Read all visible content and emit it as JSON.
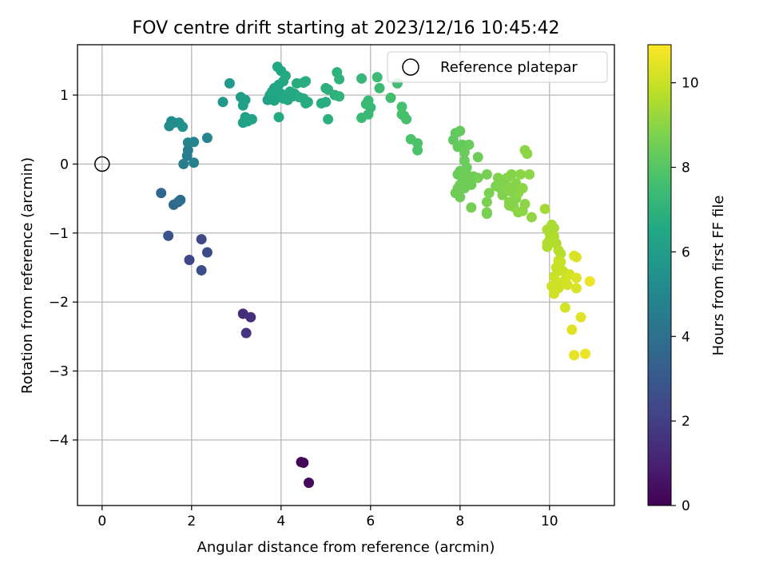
{
  "chart_data": {
    "type": "scatter",
    "title": "FOV centre drift starting at 2023/12/16 10:45:42",
    "xlabel": "Angular distance from reference (arcmin)",
    "ylabel": "Rotation from reference (arcmin)",
    "xlim": [
      -0.55,
      11.45
    ],
    "ylim": [
      -4.95,
      1.73
    ],
    "xticks": [
      0,
      2,
      4,
      6,
      8,
      10
    ],
    "yticks": [
      -4,
      -3,
      -2,
      -1,
      0,
      1
    ],
    "grid": true,
    "legend": {
      "position": "upper right",
      "entries": [
        {
          "label": "Reference platepar",
          "marker": "open-circle",
          "x": 0,
          "y": 0
        }
      ]
    },
    "colorbar": {
      "label": "Hours from first FF file",
      "range": [
        0,
        10.9
      ],
      "ticks": [
        0,
        2,
        4,
        6,
        8,
        10
      ],
      "colormap": "viridis"
    },
    "points": [
      [
        4.45,
        -4.32,
        0.1
      ],
      [
        4.5,
        -4.33,
        0.2
      ],
      [
        4.62,
        -4.62,
        0.3
      ],
      [
        3.15,
        -2.17,
        1.4
      ],
      [
        3.32,
        -2.22,
        1.5
      ],
      [
        3.22,
        -2.45,
        1.6
      ],
      [
        1.95,
        -1.39,
        2.3
      ],
      [
        2.22,
        -1.09,
        2.4
      ],
      [
        2.35,
        -1.28,
        2.5
      ],
      [
        2.22,
        -1.54,
        2.6
      ],
      [
        1.48,
        -1.04,
        2.8
      ],
      [
        1.32,
        -0.42,
        3.6
      ],
      [
        1.6,
        -0.59,
        3.7
      ],
      [
        1.7,
        -0.55,
        3.8
      ],
      [
        1.75,
        -0.52,
        3.9
      ],
      [
        1.82,
        0.0,
        4.5
      ],
      [
        1.92,
        0.2,
        4.6
      ],
      [
        2.05,
        0.02,
        4.7
      ],
      [
        1.92,
        0.31,
        4.8
      ],
      [
        2.05,
        0.32,
        4.9
      ],
      [
        2.35,
        0.38,
        5.0
      ],
      [
        1.9,
        0.12,
        4.6
      ],
      [
        1.5,
        0.55,
        5.2
      ],
      [
        1.55,
        0.62,
        5.3
      ],
      [
        1.72,
        0.6,
        5.4
      ],
      [
        1.8,
        0.54,
        5.5
      ],
      [
        1.6,
        0.6,
        5.3
      ],
      [
        2.7,
        0.9,
        5.8
      ],
      [
        2.85,
        1.17,
        5.9
      ],
      [
        3.1,
        0.97,
        6.0
      ],
      [
        3.2,
        0.93,
        6.0
      ],
      [
        3.15,
        0.85,
        6.1
      ],
      [
        3.2,
        0.68,
        6.1
      ],
      [
        3.15,
        0.6,
        6.2
      ],
      [
        3.35,
        0.65,
        6.2
      ],
      [
        3.25,
        0.62,
        6.3
      ],
      [
        3.7,
        0.93,
        6.3
      ],
      [
        3.75,
        1.0,
        6.3
      ],
      [
        3.8,
        1.05,
        6.4
      ],
      [
        3.85,
        1.1,
        6.4
      ],
      [
        3.95,
        1.15,
        6.4
      ],
      [
        3.92,
        1.41,
        6.5
      ],
      [
        4.0,
        1.35,
        6.5
      ],
      [
        4.05,
        1.2,
        6.5
      ],
      [
        4.1,
        1.28,
        6.6
      ],
      [
        4.0,
        1.02,
        6.5
      ],
      [
        4.12,
        1.0,
        6.6
      ],
      [
        4.2,
        1.05,
        6.6
      ],
      [
        4.25,
        0.98,
        6.6
      ],
      [
        4.3,
        1.02,
        6.6
      ],
      [
        3.9,
        0.97,
        6.5
      ],
      [
        4.05,
        0.95,
        6.6
      ],
      [
        3.85,
        0.92,
        6.4
      ],
      [
        4.15,
        0.93,
        6.6
      ],
      [
        3.95,
        0.68,
        6.6
      ],
      [
        4.35,
        1.17,
        6.7
      ],
      [
        4.4,
        0.97,
        6.7
      ],
      [
        4.5,
        0.95,
        6.7
      ],
      [
        4.55,
        0.88,
        6.7
      ],
      [
        4.5,
        1.18,
        6.8
      ],
      [
        4.55,
        1.2,
        6.8
      ],
      [
        4.6,
        0.9,
        6.7
      ],
      [
        4.9,
        0.88,
        6.8
      ],
      [
        5.0,
        0.9,
        6.8
      ],
      [
        5.0,
        1.1,
        6.9
      ],
      [
        5.05,
        1.08,
        6.9
      ],
      [
        5.05,
        0.65,
        6.9
      ],
      [
        5.2,
        1.0,
        6.9
      ],
      [
        5.25,
        1.33,
        7.0
      ],
      [
        5.3,
        1.23,
        7.0
      ],
      [
        5.3,
        0.98,
        7.0
      ],
      [
        5.8,
        1.24,
        7.2
      ],
      [
        5.8,
        0.67,
        7.3
      ],
      [
        5.9,
        0.87,
        7.3
      ],
      [
        5.95,
        0.92,
        7.3
      ],
      [
        5.95,
        0.72,
        7.3
      ],
      [
        6.0,
        0.82,
        7.3
      ],
      [
        6.15,
        1.26,
        7.4
      ],
      [
        6.2,
        1.1,
        7.4
      ],
      [
        6.45,
        0.96,
        7.6
      ],
      [
        6.6,
        1.17,
        7.6
      ],
      [
        6.7,
        0.83,
        7.7
      ],
      [
        6.7,
        0.72,
        7.7
      ],
      [
        6.75,
        0.7,
        7.7
      ],
      [
        6.8,
        0.65,
        7.7
      ],
      [
        6.9,
        0.36,
        7.8
      ],
      [
        7.05,
        0.3,
        7.8
      ],
      [
        7.05,
        0.2,
        7.8
      ],
      [
        7.85,
        0.35,
        8.2
      ],
      [
        7.9,
        0.45,
        8.2
      ],
      [
        8.0,
        0.48,
        8.3
      ],
      [
        8.05,
        0.28,
        8.3
      ],
      [
        7.95,
        0.25,
        8.3
      ],
      [
        8.2,
        0.28,
        8.4
      ],
      [
        8.1,
        0.17,
        8.4
      ],
      [
        8.4,
        0.1,
        8.5
      ],
      [
        8.1,
        0.05,
        8.4
      ],
      [
        8.15,
        -0.05,
        8.4
      ],
      [
        8.0,
        -0.1,
        8.4
      ],
      [
        7.95,
        -0.15,
        8.4
      ],
      [
        8.05,
        -0.2,
        8.4
      ],
      [
        8.1,
        -0.25,
        8.5
      ],
      [
        8.0,
        -0.3,
        8.5
      ],
      [
        7.95,
        -0.35,
        8.5
      ],
      [
        7.9,
        -0.42,
        8.5
      ],
      [
        8.0,
        -0.48,
        8.5
      ],
      [
        8.1,
        -0.35,
        8.5
      ],
      [
        8.15,
        -0.15,
        8.5
      ],
      [
        8.25,
        -0.3,
        8.5
      ],
      [
        8.3,
        -0.18,
        8.5
      ],
      [
        8.4,
        -0.2,
        8.6
      ],
      [
        8.25,
        -0.63,
        8.6
      ],
      [
        8.6,
        -0.15,
        8.6
      ],
      [
        8.6,
        -0.55,
        8.7
      ],
      [
        8.6,
        -0.72,
        8.7
      ],
      [
        8.6,
        -0.7,
        8.7
      ],
      [
        8.65,
        -0.42,
        8.7
      ],
      [
        8.8,
        -0.32,
        8.8
      ],
      [
        8.85,
        -0.2,
        8.8
      ],
      [
        8.9,
        -0.35,
        8.8
      ],
      [
        8.95,
        -0.45,
        8.8
      ],
      [
        9.0,
        -0.3,
        8.8
      ],
      [
        9.05,
        -0.2,
        8.9
      ],
      [
        9.1,
        -0.55,
        8.9
      ],
      [
        9.1,
        -0.6,
        8.9
      ],
      [
        9.15,
        -0.15,
        8.9
      ],
      [
        9.2,
        -0.32,
        8.9
      ],
      [
        9.25,
        -0.28,
        8.9
      ],
      [
        9.25,
        -0.5,
        8.9
      ],
      [
        9.2,
        -0.62,
        8.9
      ],
      [
        9.3,
        -0.42,
        9.0
      ],
      [
        9.3,
        -0.7,
        9.0
      ],
      [
        9.35,
        -0.15,
        9.0
      ],
      [
        9.4,
        -0.35,
        9.0
      ],
      [
        9.4,
        -0.68,
        9.0
      ],
      [
        9.45,
        -0.58,
        9.0
      ],
      [
        9.45,
        0.2,
        9.0
      ],
      [
        9.5,
        0.15,
        9.0
      ],
      [
        9.55,
        -0.15,
        9.0
      ],
      [
        9.6,
        -0.77,
        9.1
      ],
      [
        9.05,
        -0.35,
        8.9
      ],
      [
        9.15,
        -0.4,
        8.9
      ],
      [
        9.9,
        -0.65,
        9.4
      ],
      [
        9.95,
        -0.95,
        9.5
      ],
      [
        10.0,
        -1.0,
        9.5
      ],
      [
        10.05,
        -0.88,
        9.5
      ],
      [
        10.1,
        -0.93,
        9.5
      ],
      [
        10.1,
        -1.05,
        9.6
      ],
      [
        10.0,
        -1.1,
        9.6
      ],
      [
        9.95,
        -1.15,
        9.6
      ],
      [
        9.95,
        -1.2,
        9.6
      ],
      [
        10.15,
        -1.15,
        9.6
      ],
      [
        10.2,
        -1.25,
        9.7
      ],
      [
        10.25,
        -1.3,
        9.7
      ],
      [
        10.2,
        -1.4,
        9.9
      ],
      [
        10.25,
        -1.42,
        10.0
      ],
      [
        10.15,
        -1.5,
        10.0
      ],
      [
        10.2,
        -1.55,
        10.0
      ],
      [
        10.1,
        -1.63,
        10.0
      ],
      [
        10.3,
        -1.55,
        10.0
      ],
      [
        10.15,
        -1.7,
        10.1
      ],
      [
        10.05,
        -1.77,
        10.1
      ],
      [
        10.2,
        -1.8,
        10.1
      ],
      [
        10.1,
        -1.88,
        10.1
      ],
      [
        10.2,
        -1.72,
        10.1
      ],
      [
        10.35,
        -1.68,
        10.1
      ],
      [
        10.4,
        -1.75,
        10.2
      ],
      [
        10.45,
        -1.6,
        10.2
      ],
      [
        10.35,
        -2.08,
        10.2
      ],
      [
        10.55,
        -1.33,
        10.3
      ],
      [
        10.6,
        -1.35,
        10.3
      ],
      [
        10.6,
        -1.65,
        10.3
      ],
      [
        10.6,
        -1.8,
        10.3
      ],
      [
        10.7,
        -2.22,
        10.4
      ],
      [
        10.5,
        -2.4,
        10.4
      ],
      [
        10.55,
        -2.77,
        10.5
      ],
      [
        10.8,
        -2.75,
        10.6
      ],
      [
        10.9,
        -1.7,
        10.6
      ]
    ]
  }
}
